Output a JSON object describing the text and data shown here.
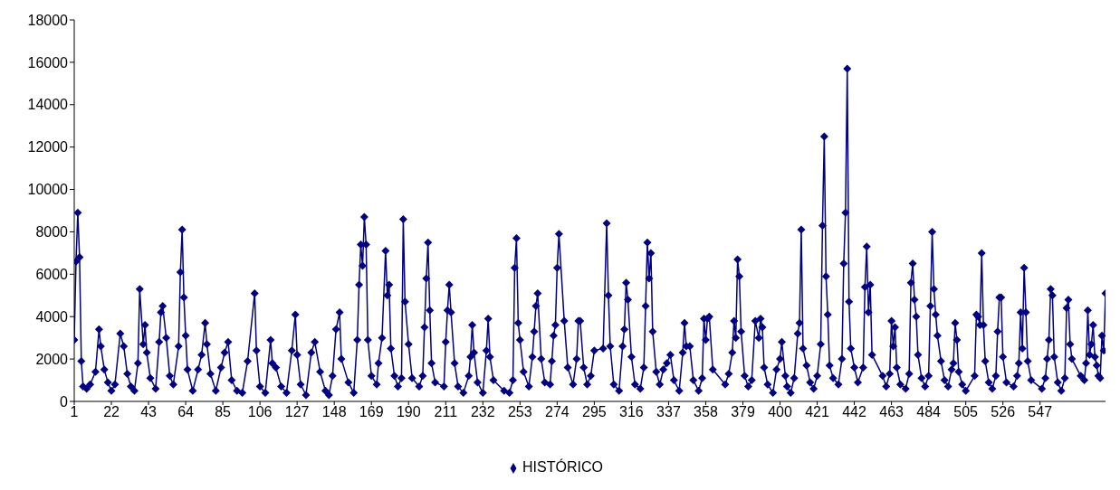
{
  "chart_data": {
    "type": "line",
    "x": [
      1,
      2,
      3,
      4,
      5,
      6,
      8,
      10,
      13,
      15,
      16,
      18,
      20,
      22,
      24,
      27,
      29,
      31,
      33,
      35,
      37,
      38,
      40,
      41,
      42,
      44,
      47,
      49,
      50,
      51,
      53,
      55,
      57,
      60,
      61,
      62,
      63,
      64,
      65,
      68,
      71,
      73,
      75,
      76,
      78,
      81,
      84,
      86,
      88,
      90,
      93,
      96,
      99,
      103,
      104,
      106,
      109,
      112,
      113,
      115,
      118,
      121,
      124,
      126,
      127,
      129,
      132,
      135,
      137,
      140,
      143,
      145,
      147,
      149,
      151,
      152,
      156,
      159,
      161,
      162,
      163,
      164,
      165,
      166,
      167,
      169,
      172,
      173,
      175,
      177,
      178,
      179,
      180,
      182,
      184,
      186,
      187,
      188,
      190,
      192,
      196,
      198,
      199,
      200,
      201,
      202,
      203,
      205,
      210,
      211,
      212,
      213,
      214,
      216,
      218,
      221,
      224,
      225,
      226,
      227,
      229,
      232,
      234,
      235,
      236,
      238,
      244,
      247,
      249,
      250,
      251,
      252,
      253,
      255,
      258,
      260,
      261,
      262,
      263,
      265,
      267,
      270,
      271,
      272,
      273,
      274,
      275,
      278,
      280,
      283,
      285,
      286,
      287,
      289,
      291,
      293,
      295,
      300,
      302,
      303,
      304,
      306,
      309,
      311,
      312,
      313,
      314,
      316,
      318,
      321,
      323,
      324,
      325,
      326,
      327,
      328,
      330,
      332,
      334,
      336,
      338,
      340,
      343,
      345,
      346,
      347,
      349,
      351,
      354,
      356,
      357,
      358,
      359,
      360,
      362,
      369,
      371,
      373,
      374,
      375,
      376,
      377,
      378,
      380,
      382,
      384,
      386,
      388,
      389,
      390,
      391,
      393,
      396,
      398,
      400,
      401,
      403,
      404,
      406,
      408,
      410,
      411,
      412,
      413,
      415,
      417,
      419,
      421,
      423,
      424,
      425,
      426,
      427,
      428,
      430,
      433,
      435,
      436,
      437,
      438,
      439,
      440,
      442,
      444,
      447,
      448,
      449,
      450,
      451,
      452,
      458,
      460,
      462,
      463,
      464,
      465,
      466,
      468,
      471,
      473,
      474,
      475,
      476,
      477,
      478,
      480,
      482,
      484,
      485,
      486,
      487,
      488,
      489,
      491,
      493,
      495,
      497,
      498,
      499,
      500,
      501,
      503,
      505,
      510,
      511,
      512,
      513,
      514,
      515,
      516,
      518,
      520,
      522,
      523,
      524,
      525,
      526,
      528,
      532,
      534,
      535,
      536,
      537,
      538,
      539,
      540,
      542,
      548,
      550,
      551,
      552,
      553,
      554,
      555,
      557,
      559,
      561,
      562,
      563,
      564,
      565,
      570,
      572,
      573,
      574,
      575,
      576,
      577,
      578,
      579,
      580,
      581,
      582,
      583,
      584
    ],
    "series": [
      {
        "name": "HISTÓRICO",
        "color": "#000080",
        "values": [
          2900,
          6600,
          8900,
          6800,
          1900,
          700,
          600,
          800,
          1400,
          3400,
          2600,
          1500,
          900,
          500,
          800,
          3200,
          2600,
          1300,
          700,
          500,
          1800,
          5300,
          2700,
          3600,
          2300,
          1100,
          600,
          2800,
          4200,
          4500,
          3000,
          1200,
          800,
          2600,
          6100,
          8100,
          4900,
          3100,
          1500,
          500,
          1500,
          2200,
          3700,
          2700,
          1300,
          500,
          1600,
          2300,
          2800,
          1000,
          500,
          400,
          1900,
          5100,
          2400,
          700,
          400,
          2900,
          1800,
          1600,
          700,
          400,
          2400,
          4100,
          2200,
          800,
          300,
          2300,
          2800,
          1400,
          500,
          300,
          1200,
          3400,
          4200,
          2000,
          900,
          400,
          2900,
          5500,
          7400,
          6400,
          8700,
          7400,
          2900,
          1200,
          800,
          1800,
          3000,
          7100,
          5000,
          5500,
          2500,
          1200,
          700,
          1100,
          8600,
          4700,
          2700,
          1100,
          700,
          1200,
          3500,
          5800,
          7500,
          4300,
          1800,
          900,
          700,
          2800,
          4300,
          5500,
          4200,
          1800,
          700,
          400,
          1200,
          2100,
          3600,
          2300,
          900,
          400,
          2400,
          3900,
          2100,
          1000,
          500,
          400,
          1000,
          6300,
          7700,
          3700,
          2900,
          1400,
          700,
          2100,
          3300,
          4500,
          5100,
          2000,
          900,
          800,
          1900,
          3100,
          3600,
          6300,
          7900,
          3800,
          1600,
          800,
          2000,
          3800,
          3800,
          1600,
          800,
          1200,
          2400,
          2500,
          8400,
          5000,
          2600,
          800,
          500,
          2600,
          3400,
          5600,
          4800,
          2100,
          800,
          600,
          1600,
          4500,
          7500,
          5800,
          7000,
          3300,
          1400,
          800,
          1500,
          1800,
          2200,
          1000,
          500,
          2300,
          3700,
          2600,
          2600,
          1000,
          500,
          1100,
          3900,
          2900,
          3900,
          4000,
          1500,
          800,
          1300,
          2300,
          3800,
          3000,
          6700,
          5900,
          3300,
          1200,
          700,
          1000,
          3800,
          3000,
          3900,
          3500,
          1600,
          800,
          400,
          1500,
          2000,
          2800,
          1200,
          700,
          400,
          1100,
          3200,
          3700,
          8100,
          2500,
          1700,
          900,
          600,
          1200,
          2700,
          8300,
          12500,
          5900,
          4100,
          1700,
          1100,
          800,
          2000,
          6500,
          8900,
          15700,
          4700,
          2500,
          1600,
          900,
          1600,
          5400,
          7300,
          4200,
          5500,
          2200,
          1200,
          700,
          1300,
          3800,
          2600,
          3500,
          1600,
          800,
          600,
          1300,
          5600,
          6500,
          4800,
          4000,
          2200,
          1100,
          700,
          1200,
          4500,
          8000,
          5300,
          4100,
          3100,
          1900,
          1000,
          700,
          1500,
          1800,
          3700,
          2900,
          1400,
          800,
          500,
          1200,
          4100,
          4000,
          3600,
          7000,
          3600,
          1900,
          900,
          600,
          1200,
          3300,
          4900,
          4900,
          2100,
          900,
          700,
          1200,
          1800,
          4200,
          2500,
          6300,
          4200,
          1900,
          1000,
          600,
          1100,
          2000,
          2900,
          5300,
          5000,
          2100,
          900,
          500,
          1100,
          4400,
          4800,
          2700,
          2000,
          1200,
          1000,
          1800,
          4300,
          2200,
          2700,
          3600,
          2100,
          1700,
          1200,
          1100,
          3100,
          2400,
          5100
        ]
      }
    ],
    "xlim": [
      1,
      584
    ],
    "xticks": [
      1,
      22,
      43,
      64,
      85,
      106,
      127,
      148,
      169,
      190,
      211,
      232,
      253,
      274,
      295,
      316,
      337,
      358,
      379,
      400,
      421,
      442,
      463,
      484,
      505,
      526,
      547
    ],
    "ylim": [
      0,
      18000
    ],
    "yticks": [
      0,
      2000,
      4000,
      6000,
      8000,
      10000,
      12000,
      14000,
      16000,
      18000
    ],
    "marker": "diamond",
    "legend": "bottom"
  }
}
